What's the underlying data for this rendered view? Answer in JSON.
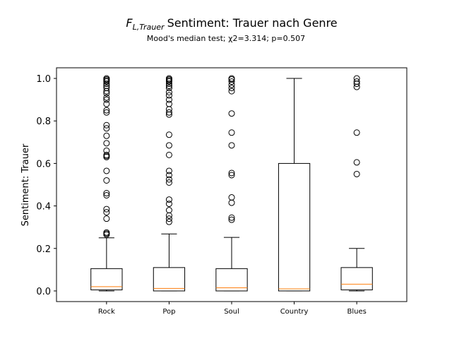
{
  "chart_data": {
    "type": "box",
    "title_symbol": "F",
    "title_subscript": "L,Trauer",
    "title": "Sentiment: Trauer nach Genre",
    "subtitle": "Mood's median test; χ2=3.314; p=0.507",
    "xlabel": "",
    "ylabel": "Sentiment: Trauer",
    "ylim": [
      -0.05,
      1.05
    ],
    "yticks": [
      "0.0",
      "0.2",
      "0.4",
      "0.6",
      "0.8",
      "1.0"
    ],
    "grid": false,
    "colors": {
      "box": "#000000",
      "median": "#ff7f0e",
      "outlier": "#000000"
    },
    "categories": [
      "Rock",
      "Pop",
      "Soul",
      "Country",
      "Blues"
    ],
    "boxes": [
      {
        "category": "Rock",
        "whisker_low": 0.0,
        "q1": 0.005,
        "median": 0.02,
        "q3": 0.105,
        "whisker_high": 0.25,
        "outliers": [
          0.265,
          0.27,
          0.275,
          0.34,
          0.37,
          0.385,
          0.45,
          0.46,
          0.52,
          0.565,
          0.63,
          0.635,
          0.64,
          0.66,
          0.695,
          0.73,
          0.765,
          0.78,
          0.84,
          0.85,
          0.88,
          0.9,
          0.91,
          0.93,
          0.94,
          0.955,
          0.965,
          0.975,
          0.985,
          0.99,
          0.995,
          1.0
        ]
      },
      {
        "category": "Pop",
        "whisker_low": 0.0,
        "q1": 0.0,
        "median": 0.012,
        "q3": 0.11,
        "whisker_high": 0.268,
        "outliers": [
          0.325,
          0.34,
          0.355,
          0.38,
          0.41,
          0.43,
          0.51,
          0.525,
          0.545,
          0.565,
          0.64,
          0.685,
          0.735,
          0.83,
          0.84,
          0.855,
          0.88,
          0.9,
          0.92,
          0.935,
          0.955,
          0.965,
          0.975,
          0.985,
          0.99,
          0.995,
          1.0
        ]
      },
      {
        "category": "Soul",
        "whisker_low": 0.0,
        "q1": 0.0,
        "median": 0.015,
        "q3": 0.105,
        "whisker_high": 0.252,
        "outliers": [
          0.335,
          0.345,
          0.415,
          0.44,
          0.545,
          0.555,
          0.685,
          0.745,
          0.835,
          0.94,
          0.955,
          0.97,
          0.985,
          0.995,
          1.0
        ]
      },
      {
        "category": "Country",
        "whisker_low": 0.0,
        "q1": 0.0,
        "median": 0.01,
        "q3": 0.6,
        "whisker_high": 1.0,
        "outliers": []
      },
      {
        "category": "Blues",
        "whisker_low": 0.0,
        "q1": 0.005,
        "median": 0.032,
        "q3": 0.11,
        "whisker_high": 0.2,
        "outliers": [
          0.55,
          0.605,
          0.745,
          0.96,
          0.975,
          0.985,
          1.0
        ]
      }
    ]
  }
}
